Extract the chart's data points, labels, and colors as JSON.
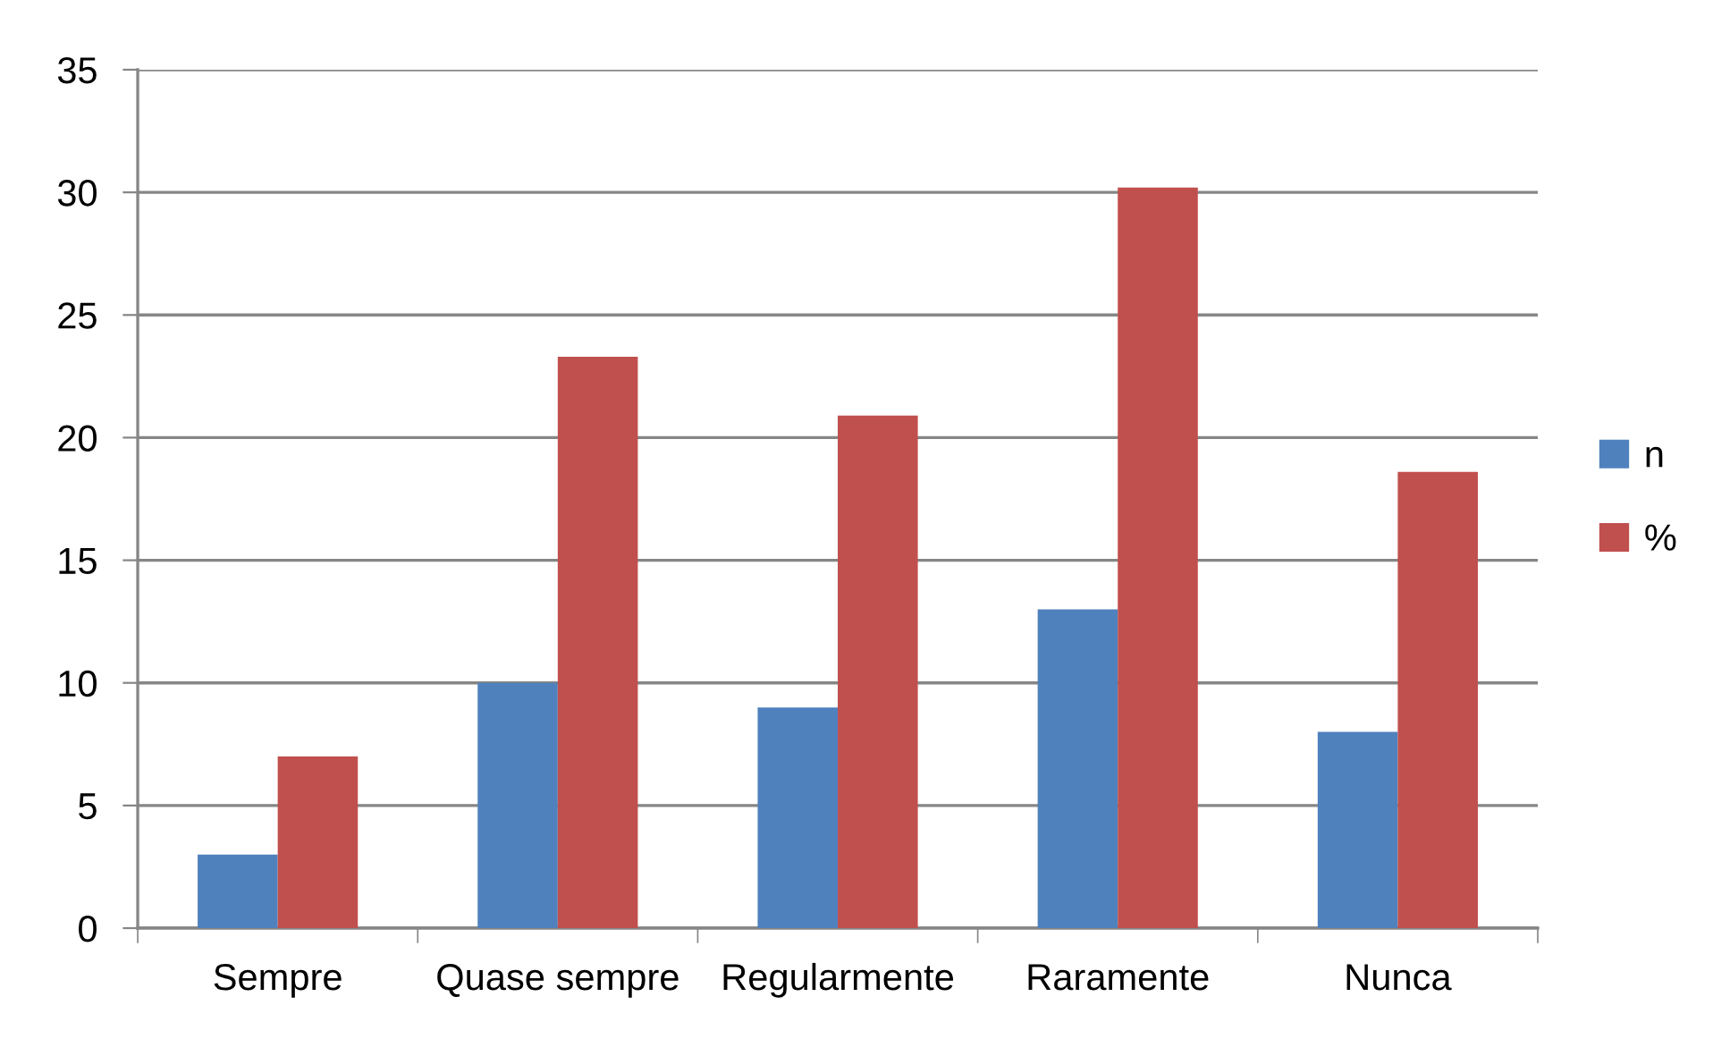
{
  "chart_data": {
    "type": "bar",
    "categories": [
      "Sempre",
      "Quase sempre",
      "Regularmente",
      "Raramente",
      "Nunca"
    ],
    "series": [
      {
        "name": "n",
        "color": "#4f81bd",
        "values": [
          3,
          10,
          9,
          13,
          8
        ]
      },
      {
        "name": "%",
        "color": "#c0504d",
        "values": [
          7,
          23.3,
          20.9,
          30.2,
          18.6
        ]
      }
    ],
    "ylim": [
      0,
      35
    ],
    "yticks": [
      0,
      5,
      10,
      15,
      20,
      25,
      30,
      35
    ],
    "grid": "y",
    "legend": "right"
  }
}
